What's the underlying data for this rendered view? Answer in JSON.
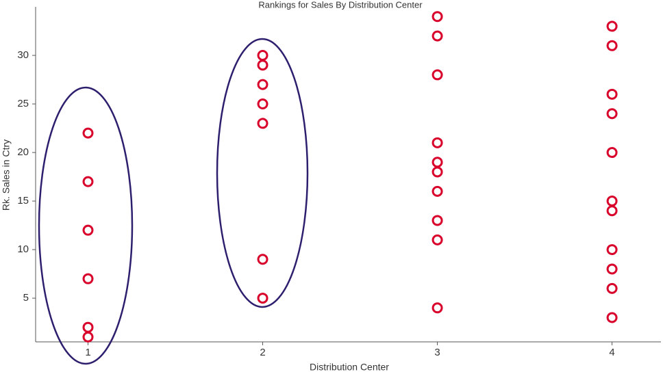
{
  "chart_data": {
    "type": "scatter",
    "title": "Rankings for Sales By Distribution Center",
    "x_label": "Distribution Center",
    "y_label": "Rk. Sales in Ctry",
    "x": [
      1,
      1,
      1,
      1,
      1,
      1,
      2,
      2,
      2,
      2,
      2,
      2,
      2,
      3,
      3,
      3,
      3,
      3,
      3,
      3,
      3,
      3,
      3,
      4,
      4,
      4,
      4,
      4,
      4,
      4,
      4,
      4,
      4,
      4
    ],
    "values": [
      22,
      17,
      12,
      7,
      2,
      1,
      30,
      29,
      27,
      25,
      23,
      9,
      5,
      34,
      32,
      28,
      21,
      19,
      18,
      16,
      13,
      11,
      4,
      33,
      31,
      26,
      24,
      20,
      15,
      14,
      10,
      8,
      6,
      3
    ],
    "color": "#d9042b",
    "xlim": [
      0.7,
      4.28
    ],
    "xticks": [
      1,
      2,
      3,
      4
    ],
    "ylim": [
      0.5,
      35
    ],
    "yticks": [
      5,
      10,
      15,
      20,
      25,
      30
    ],
    "grid": false
  }
}
